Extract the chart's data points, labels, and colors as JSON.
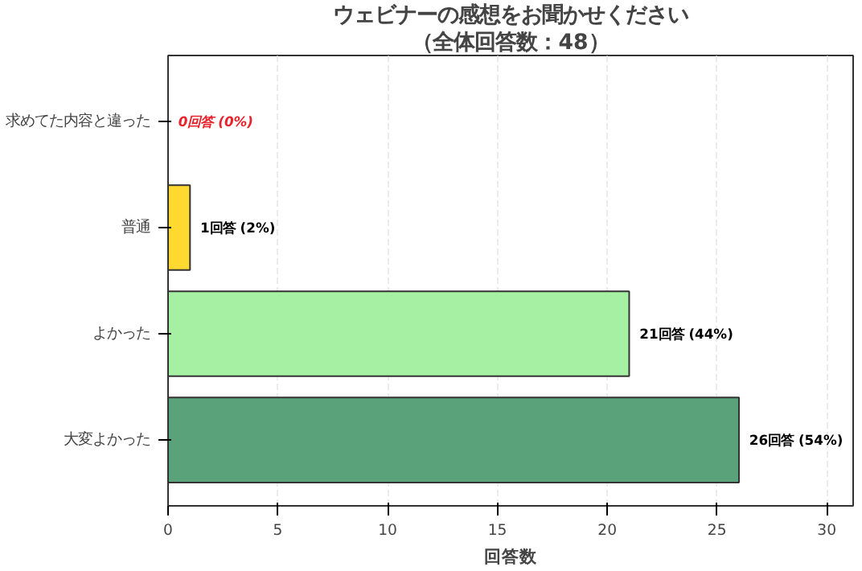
{
  "chart_data": {
    "type": "bar",
    "orientation": "horizontal",
    "title": "ウェビナーの感想をお聞かせください",
    "subtitle": "（全体回答数：48）",
    "xlabel": "回答数",
    "categories": [
      "求めてた内容と違った",
      "普通",
      "よかった",
      "大変よかった"
    ],
    "values": [
      0,
      1,
      21,
      26
    ],
    "colors": [
      "#ff6b6b",
      "#ffd92f",
      "#a6f0a4",
      "#59a27a"
    ],
    "value_labels": [
      "0回答 (0%)",
      "1回答 (2%)",
      "21回答 (44%)",
      "26回答 (54%)"
    ],
    "xlim": [
      0,
      31.2
    ],
    "xticks": [
      0,
      5,
      10,
      15,
      20,
      25,
      30
    ],
    "grid": "x"
  }
}
